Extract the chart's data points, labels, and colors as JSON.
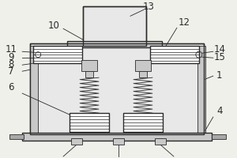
{
  "bg_color": "#f0f0eb",
  "line_color": "#2a2a2a",
  "fill_light": "#e8e8e8",
  "fill_medium": "#c8c8c8",
  "fill_dark": "#a8a8a8",
  "fill_white": "#ffffff",
  "label_fontsize": 8.5
}
